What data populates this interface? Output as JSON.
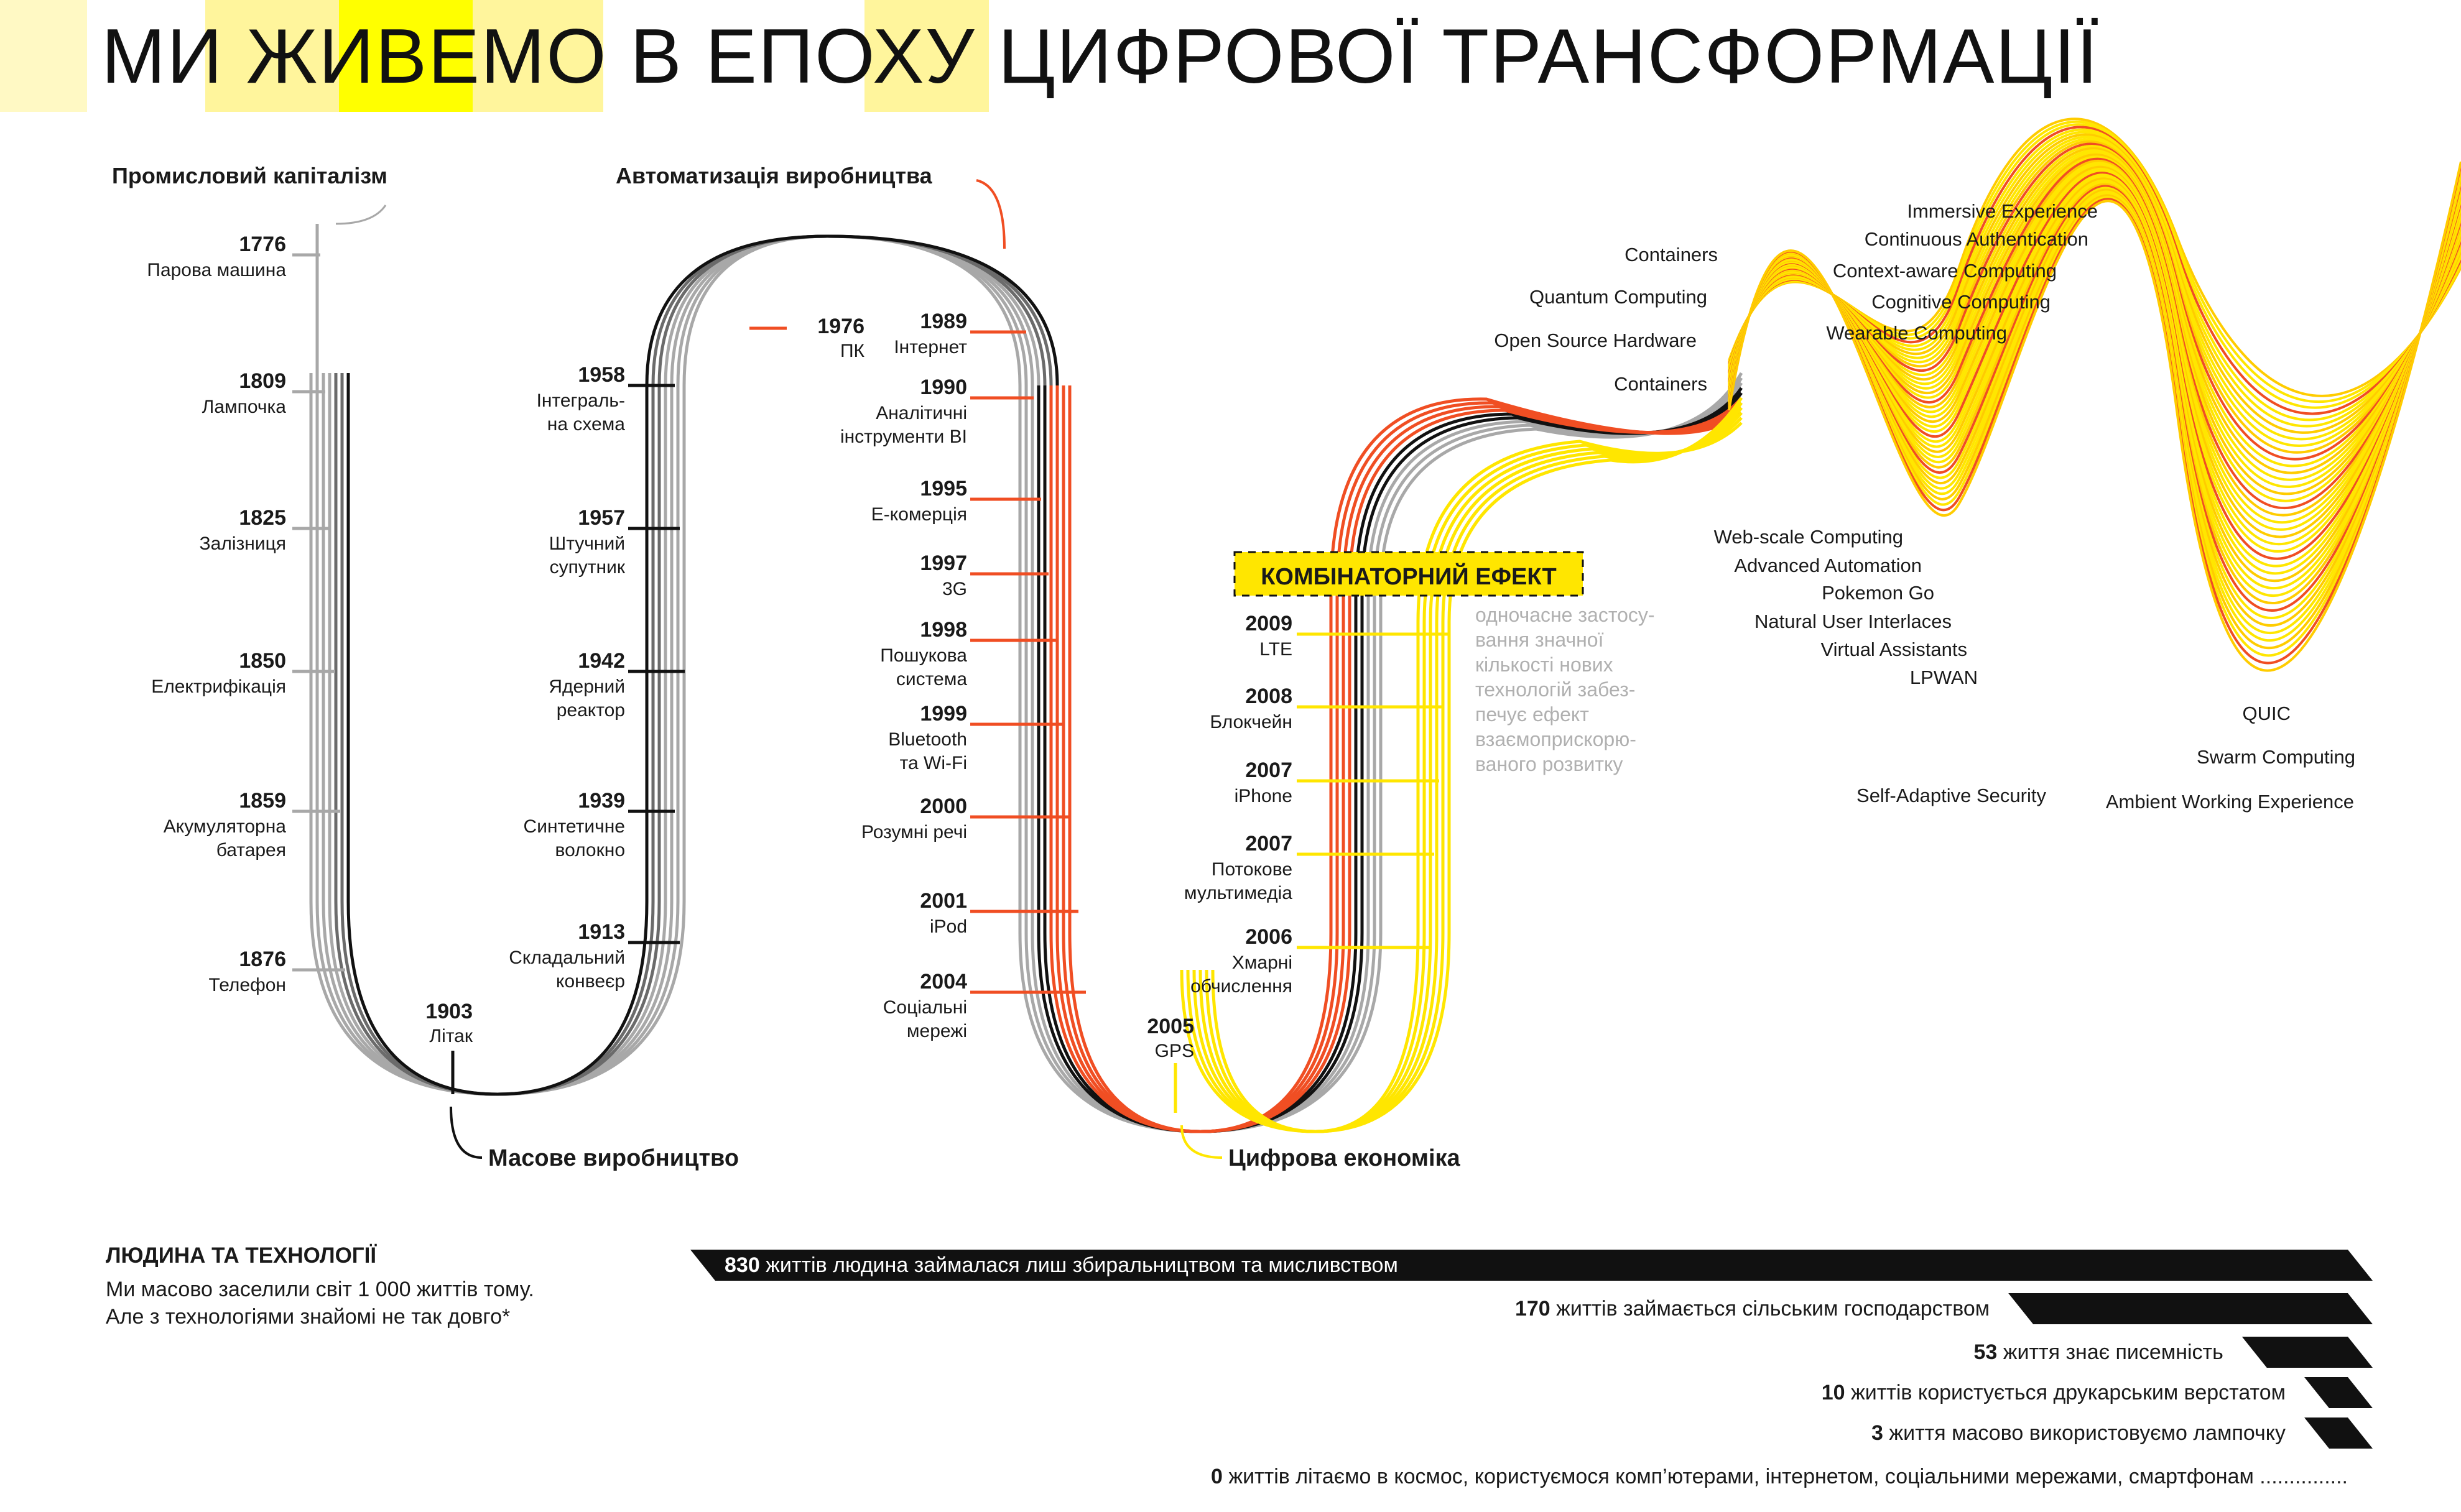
{
  "title": {
    "text": "МИ ЖИВЕМО В ЕПОХУ ЦИФРОВОЇ ТРАНСФОРМАЦІЇ"
  },
  "colors": {
    "yellow": "#ffe600",
    "pale_yellow": "#fff59c",
    "light_yellow": "#fff9c4",
    "orange": "#f04e23",
    "gray": "#a8a8a8",
    "black": "#111111"
  },
  "eras": {
    "industrial": "Промисловий капіталізм",
    "automation": "Автоматизація виробництва",
    "mass": "Масове виробництво",
    "digital": "Цифрова економіка",
    "combinatorial": "КОМБІНАТОРНИЙ ЕФЕКТ",
    "combinatorial_desc": [
      "одночасне застосу-",
      "вання значної",
      "кількості нових",
      "технологій забез-",
      "печує ефект",
      "взаємоприскорю-",
      "ваного розвитку"
    ]
  },
  "milestones_left": [
    {
      "year": "1776",
      "label": [
        "Парова машина"
      ]
    },
    {
      "year": "1809",
      "label": [
        "Лампочка"
      ]
    },
    {
      "year": "1825",
      "label": [
        "Залізниця"
      ]
    },
    {
      "year": "1850",
      "label": [
        "Електрифікація"
      ]
    },
    {
      "year": "1859",
      "label": [
        "Акумуляторна",
        "батарея"
      ]
    },
    {
      "year": "1876",
      "label": [
        "Телефон"
      ]
    },
    {
      "year": "1903",
      "label": [
        "Літак"
      ]
    }
  ],
  "milestones_second": [
    {
      "year": "1958",
      "label": [
        "Інтеграль-",
        "на схема"
      ]
    },
    {
      "year": "1957",
      "label": [
        "Штучний",
        "супутник"
      ]
    },
    {
      "year": "1942",
      "label": [
        "Ядерний",
        "реактор"
      ]
    },
    {
      "year": "1939",
      "label": [
        "Синтетичне",
        "волокно"
      ]
    },
    {
      "year": "1913",
      "label": [
        "Складальний",
        "конвеєр"
      ]
    },
    {
      "year": "1976",
      "label": [
        "ПК"
      ]
    }
  ],
  "milestones_third": [
    {
      "year": "1989",
      "label": [
        "Інтернет"
      ]
    },
    {
      "year": "1990",
      "label": [
        "Аналітичні",
        "інструменти BI"
      ]
    },
    {
      "year": "1995",
      "label": [
        "Е-комерція"
      ]
    },
    {
      "year": "1997",
      "label": [
        "3G"
      ]
    },
    {
      "year": "1998",
      "label": [
        "Пошукова",
        "система"
      ]
    },
    {
      "year": "1999",
      "label": [
        "Bluetooth",
        "та Wi-Fi"
      ]
    },
    {
      "year": "2000",
      "label": [
        "Розумні речі"
      ]
    },
    {
      "year": "2001",
      "label": [
        "iPod"
      ]
    },
    {
      "year": "2004",
      "label": [
        "Соціальні",
        "мережі"
      ]
    },
    {
      "year": "2005",
      "label": [
        "GPS"
      ]
    }
  ],
  "milestones_fourth": [
    {
      "year": "2009",
      "label": [
        "LTE"
      ]
    },
    {
      "year": "2008",
      "label": [
        "Блокчейн"
      ]
    },
    {
      "year": "2007",
      "label": [
        "iPhone"
      ]
    },
    {
      "year": "2007",
      "label": [
        "Потокове",
        "мультимедіа"
      ]
    },
    {
      "year": "2006",
      "label": [
        "Хмарні",
        "обчислення"
      ]
    }
  ],
  "future_tech": [
    "Containers",
    "Quantum Computing",
    "Open Source Hardware",
    "Containers",
    "Immersive Experience",
    "Continuous Authentication",
    "Context-aware Computing",
    "Cognitive Computing",
    "Wearable Computing",
    "Web-scale Computing",
    "Advanced Automation",
    "Pokemon Go",
    "Natural User Interlaces",
    "Virtual Assistants",
    "LPWAN",
    "QUIC",
    "Swarm Computing",
    "Self-Adaptive Security",
    "Ambient Working Experience"
  ],
  "human": {
    "heading": "ЛЮДИНА ТА ТЕХНОЛОГІЇ",
    "line1": "Ми масово заселили світ 1 000 життів тому.",
    "line2": "Але з технологіями знайомі не так довго*"
  },
  "bars": [
    {
      "num": "830",
      "text": " життів людина займалася лиш збиральництвом та мисливством",
      "value": 830
    },
    {
      "num": "170",
      "text": " життів займається сільським господарством",
      "value": 170
    },
    {
      "num": "53",
      "text": " життя знає писемність",
      "value": 53
    },
    {
      "num": "10",
      "text": " життів користується друкарським верстатом",
      "value": 10
    },
    {
      "num": "3",
      "text": " життя масово використовуємо лампочку",
      "value": 3
    },
    {
      "num": "0",
      "text": " життів літаємо в космос, користуємося комп’ютерами, інтернетом, соціальними мережами, смартфонам ...............",
      "value": 0
    }
  ]
}
